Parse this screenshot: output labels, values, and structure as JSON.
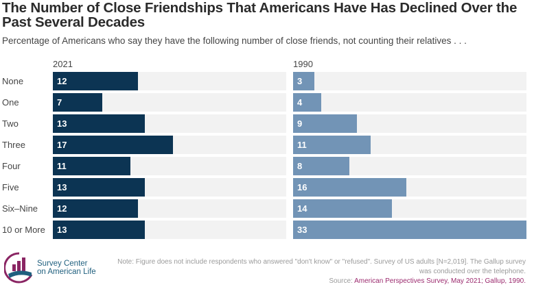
{
  "chart_data": {
    "type": "bar",
    "title": "The Number of Close Friendships That Americans Have Has Declined Over the Past Several Decades",
    "subtitle": "Percentage of Americans who say they have the following number of close friends, not counting their relatives . . .",
    "categories": [
      "None",
      "One",
      "Two",
      "Three",
      "Four",
      "Five",
      "Six–Nine",
      "10 or More"
    ],
    "series": [
      {
        "name": "2021",
        "color": "#0c3453",
        "values": [
          12,
          7,
          13,
          17,
          11,
          13,
          12,
          13
        ]
      },
      {
        "name": "1990",
        "color": "#7294b6",
        "values": [
          3,
          4,
          9,
          11,
          8,
          16,
          14,
          33
        ]
      }
    ],
    "xlim": [
      0,
      33
    ]
  },
  "footer": {
    "note": "Note: Figure does not include respondents who answered \"don't know\" or \"refused\". Survey of US adults [N=2,019]. The Gallup survey was conducted over the telephone.",
    "source_label": "Source: ",
    "source": "American Perspectives Survey, May 2021; Gallup, 1990.",
    "logo_line1": "Survey Center",
    "logo_line2": "on American Life"
  }
}
